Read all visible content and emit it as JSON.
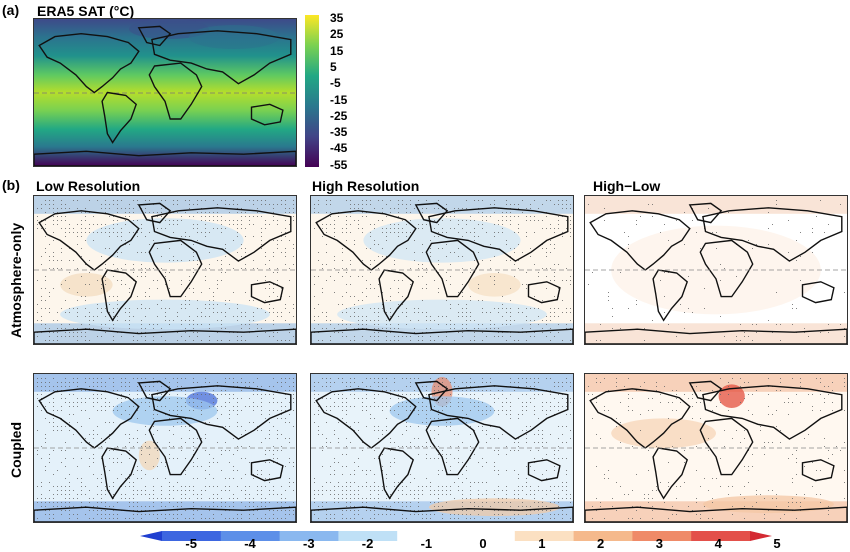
{
  "panel_a": {
    "letter": "(a)",
    "title": "ERA5 SAT (°C)",
    "colorbar": {
      "ticks": [
        "35",
        "25",
        "15",
        "5",
        "-5",
        "-15",
        "-25",
        "-35",
        "-45",
        "-55"
      ],
      "colors": [
        "#fde725",
        "#b8de29",
        "#6ccd5a",
        "#35b779",
        "#1f9e89",
        "#26828e",
        "#31688e",
        "#3e4a89",
        "#482878",
        "#440154"
      ]
    }
  },
  "panel_b": {
    "letter": "(b)",
    "columns": [
      "Low Resolution",
      "High Resolution",
      "High−Low"
    ],
    "rows": [
      "Atmosphere-only",
      "Coupled"
    ]
  },
  "difference_colorbar": {
    "ticks": [
      "-5",
      "-4",
      "-3",
      "-2",
      "-1",
      "0",
      "1",
      "2",
      "3",
      "4",
      "5"
    ],
    "colors": [
      "#1f3fd0",
      "#3d66e0",
      "#5d8fe8",
      "#8ab8ef",
      "#bfe0f6",
      "#ffffff",
      "#ffffff",
      "#fbe0c2",
      "#f5b98c",
      "#ef8a68",
      "#e3504a",
      "#d42a33"
    ]
  },
  "colors": {
    "coast": "#111111",
    "equator": "#888888",
    "stipple": "#666666"
  }
}
